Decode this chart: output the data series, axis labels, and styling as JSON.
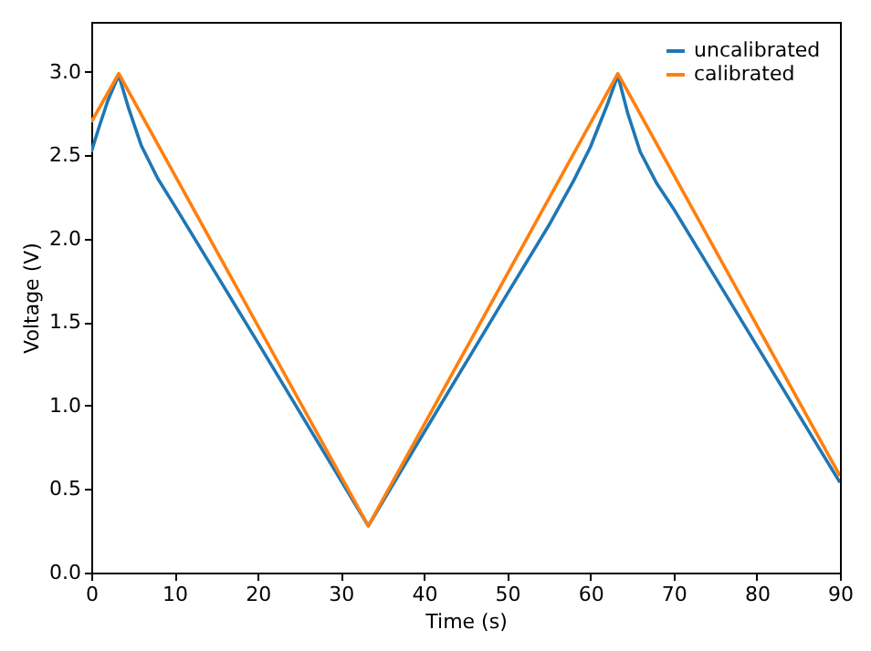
{
  "chart_data": {
    "type": "line",
    "xlabel": "Time (s)",
    "ylabel": "Voltage (V)",
    "xlim": [
      0,
      90
    ],
    "ylim": [
      0,
      3.3
    ],
    "xticks": [
      0,
      10,
      20,
      30,
      40,
      50,
      60,
      70,
      80,
      90
    ],
    "yticks": [
      {
        "value": 0,
        "label": "0.0"
      },
      0.5,
      {
        "value": 1,
        "label": "1.0"
      },
      1.5,
      {
        "value": 2,
        "label": "2.0"
      },
      2.5,
      {
        "value": 3,
        "label": "3.0"
      }
    ],
    "legend": "top right",
    "grid": false,
    "series": [
      {
        "name": "uncalibrated",
        "color": "#1f77b4",
        "x": [
          0,
          1,
          2,
          3.3,
          4.5,
          6,
          8,
          10,
          15,
          20,
          33.3,
          40,
          50,
          55,
          58,
          60,
          62,
          63.3,
          64.5,
          66,
          68,
          70,
          80,
          90
        ],
        "values": [
          2.52,
          2.68,
          2.83,
          2.98,
          2.78,
          2.56,
          2.36,
          2.2,
          1.79,
          1.38,
          0.28,
          0.84,
          1.67,
          2.08,
          2.35,
          2.55,
          2.8,
          2.98,
          2.75,
          2.52,
          2.33,
          2.18,
          1.36,
          0.54
        ]
      },
      {
        "name": "calibrated",
        "color": "#ff7f0e",
        "x": [
          0,
          3.3,
          33.3,
          63.3,
          90
        ],
        "values": [
          2.7,
          2.99,
          0.28,
          2.99,
          0.58
        ]
      }
    ]
  }
}
